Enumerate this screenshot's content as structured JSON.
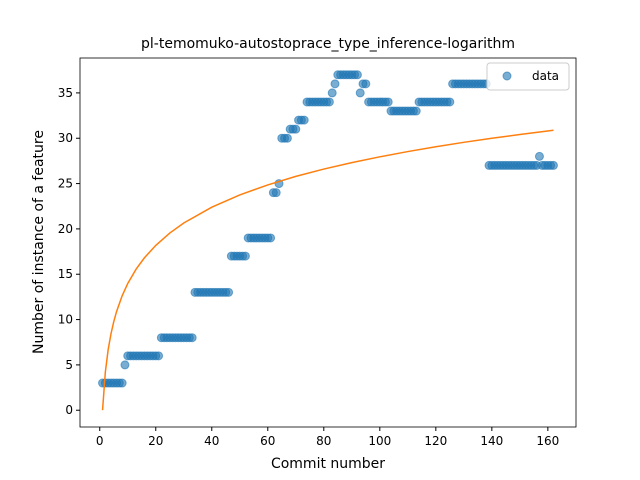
{
  "chart_data": {
    "type": "scatter",
    "title": "pl-temomuko-autostoprace_type_inference-logarithm",
    "xlabel": "Commit number",
    "ylabel": "Number of instance of a feature",
    "xlim": [
      -7.05,
      170.05
    ],
    "ylim": [
      -1.85,
      38.85
    ],
    "xticks": [
      0,
      20,
      40,
      60,
      80,
      100,
      120,
      140,
      160
    ],
    "yticks": [
      0,
      5,
      10,
      15,
      20,
      25,
      30,
      35
    ],
    "legend": "upper right",
    "series": [
      {
        "name": "data",
        "type": "scatter",
        "color": "#1f77b4",
        "x": [
          1,
          2,
          3,
          4,
          5,
          6,
          7,
          8,
          9,
          10,
          11,
          12,
          13,
          14,
          15,
          16,
          17,
          18,
          19,
          20,
          21,
          22,
          23,
          24,
          25,
          26,
          27,
          28,
          29,
          30,
          31,
          32,
          33,
          34,
          35,
          36,
          37,
          38,
          39,
          40,
          41,
          42,
          43,
          44,
          45,
          46,
          47,
          48,
          49,
          50,
          51,
          52,
          53,
          54,
          55,
          56,
          57,
          58,
          59,
          60,
          61,
          62,
          63,
          64,
          65,
          66,
          67,
          68,
          69,
          70,
          71,
          72,
          73,
          74,
          75,
          76,
          77,
          78,
          79,
          80,
          81,
          82,
          83,
          84,
          85,
          86,
          87,
          88,
          89,
          90,
          91,
          92,
          93,
          94,
          95,
          96,
          97,
          98,
          99,
          100,
          101,
          102,
          103,
          104,
          105,
          106,
          107,
          108,
          109,
          110,
          111,
          112,
          113,
          114,
          115,
          116,
          117,
          118,
          119,
          120,
          121,
          122,
          123,
          124,
          125,
          126,
          127,
          128,
          129,
          130,
          131,
          132,
          133,
          134,
          135,
          136,
          137,
          138,
          139,
          140,
          141,
          142,
          143,
          144,
          145,
          146,
          147,
          148,
          149,
          150,
          151,
          152,
          153,
          154,
          155,
          156,
          157,
          158,
          159,
          160,
          161,
          162
        ],
        "values": [
          3,
          3,
          3,
          3,
          3,
          3,
          3,
          3,
          5,
          6,
          6,
          6,
          6,
          6,
          6,
          6,
          6,
          6,
          6,
          6,
          6,
          8,
          8,
          8,
          8,
          8,
          8,
          8,
          8,
          8,
          8,
          8,
          8,
          13,
          13,
          13,
          13,
          13,
          13,
          13,
          13,
          13,
          13,
          13,
          13,
          13,
          17,
          17,
          17,
          17,
          17,
          17,
          19,
          19,
          19,
          19,
          19,
          19,
          19,
          19,
          19,
          24,
          24,
          25,
          30,
          30,
          30,
          31,
          31,
          31,
          32,
          32,
          32,
          34,
          34,
          34,
          34,
          34,
          34,
          34,
          34,
          34,
          35,
          36,
          37,
          37,
          37,
          37,
          37,
          37,
          37,
          37,
          35,
          36,
          36,
          34,
          34,
          34,
          34,
          34,
          34,
          34,
          34,
          33,
          33,
          33,
          33,
          33,
          33,
          33,
          33,
          33,
          33,
          34,
          34,
          34,
          34,
          34,
          34,
          34,
          34,
          34,
          34,
          34,
          34,
          36,
          36,
          36,
          36,
          36,
          36,
          36,
          36,
          36,
          36,
          36,
          36,
          36,
          27,
          27,
          27,
          27,
          27,
          27,
          27,
          27,
          27,
          27,
          27,
          27,
          27,
          27,
          27,
          27,
          27,
          27,
          28,
          27,
          27,
          27,
          27,
          27
        ]
      },
      {
        "type": "line",
        "color": "#ff7f0e",
        "x": [
          1,
          2,
          3,
          4,
          5,
          6,
          8,
          10,
          13,
          16,
          20,
          25,
          30,
          40,
          50,
          60,
          70,
          80,
          90,
          100,
          110,
          120,
          130,
          140,
          150,
          162
        ],
        "values": [
          0,
          4.21,
          6.67,
          8.41,
          9.77,
          10.88,
          12.62,
          13.98,
          15.57,
          16.83,
          18.18,
          19.54,
          20.65,
          22.39,
          23.75,
          24.85,
          25.79,
          26.6,
          27.31,
          27.95,
          28.53,
          29.06,
          29.55,
          30.0,
          30.41,
          30.88
        ]
      }
    ]
  }
}
